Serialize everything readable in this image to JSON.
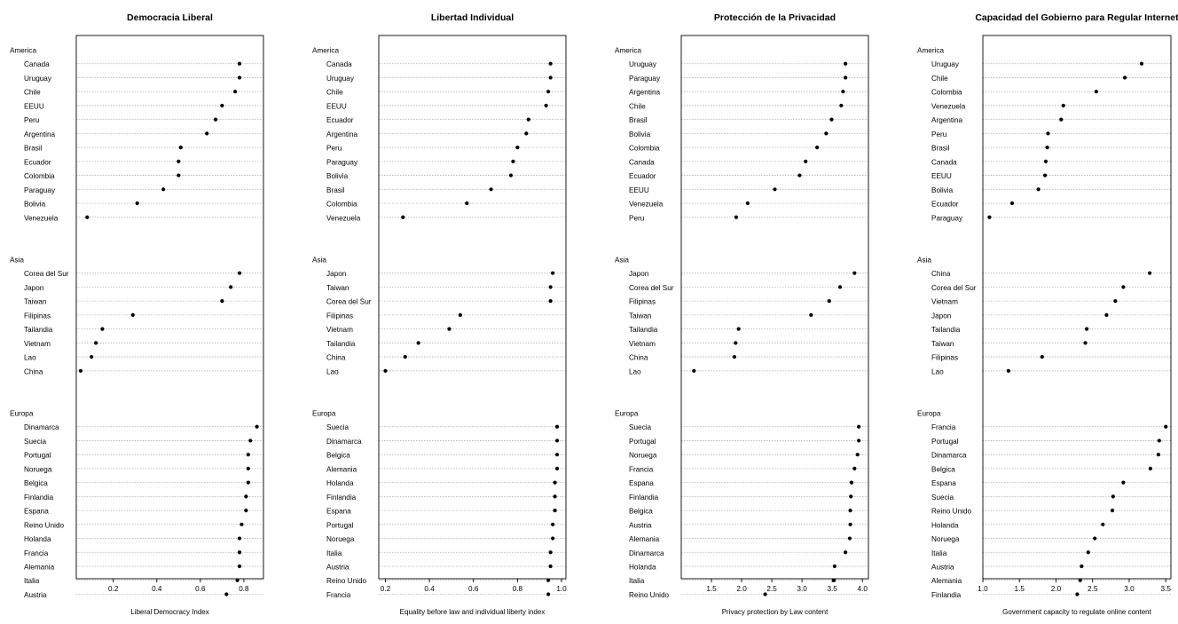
{
  "chart_data": [
    {
      "type": "scatter",
      "title": "Democracia Liberal",
      "xlabel": "Liberal Democracy Index",
      "xlim": [
        0.03,
        0.89
      ],
      "ticks": [
        0.2,
        0.4,
        0.6,
        0.8
      ],
      "tick_labels": [
        "0.2",
        "0.4",
        "0.6",
        "0.8"
      ],
      "grid": "horizontal dotted",
      "groups": [
        {
          "name": "America",
          "points": [
            {
              "label": "Canada",
              "value": 0.78
            },
            {
              "label": "Uruguay",
              "value": 0.78
            },
            {
              "label": "Chile",
              "value": 0.76
            },
            {
              "label": "EEUU",
              "value": 0.7
            },
            {
              "label": "Peru",
              "value": 0.67
            },
            {
              "label": "Argentina",
              "value": 0.63
            },
            {
              "label": "Brasil",
              "value": 0.51
            },
            {
              "label": "Ecuador",
              "value": 0.5
            },
            {
              "label": "Colombia",
              "value": 0.5
            },
            {
              "label": "Paraguay",
              "value": 0.43
            },
            {
              "label": "Bolivia",
              "value": 0.31
            },
            {
              "label": "Venezuela",
              "value": 0.08
            }
          ]
        },
        {
          "name": "Asia",
          "points": [
            {
              "label": "Corea del Sur",
              "value": 0.78
            },
            {
              "label": "Japon",
              "value": 0.74
            },
            {
              "label": "Taiwan",
              "value": 0.7
            },
            {
              "label": "Filipinas",
              "value": 0.29
            },
            {
              "label": "Tailandia",
              "value": 0.15
            },
            {
              "label": "Vietnam",
              "value": 0.12
            },
            {
              "label": "Lao",
              "value": 0.1
            },
            {
              "label": "China",
              "value": 0.05
            }
          ]
        },
        {
          "name": "Europa",
          "points": [
            {
              "label": "Dinamarca",
              "value": 0.86
            },
            {
              "label": "Suecia",
              "value": 0.83
            },
            {
              "label": "Portugal",
              "value": 0.82
            },
            {
              "label": "Noruega",
              "value": 0.82
            },
            {
              "label": "Belgica",
              "value": 0.82
            },
            {
              "label": "Finlandia",
              "value": 0.81
            },
            {
              "label": "Espana",
              "value": 0.81
            },
            {
              "label": "Reino Unido",
              "value": 0.79
            },
            {
              "label": "Holanda",
              "value": 0.78
            },
            {
              "label": "Francia",
              "value": 0.78
            },
            {
              "label": "Alemania",
              "value": 0.78
            },
            {
              "label": "Italia",
              "value": 0.77
            },
            {
              "label": "Austria",
              "value": 0.72
            }
          ]
        }
      ]
    },
    {
      "type": "scatter",
      "title": "Libertad Individual",
      "xlabel": "Equality before law and individual liberty index",
      "xlim": [
        0.17,
        1.02
      ],
      "ticks": [
        0.2,
        0.4,
        0.6,
        0.8,
        1.0
      ],
      "tick_labels": [
        "0.2",
        "0.4",
        "0.6",
        "0.8",
        "1.0"
      ],
      "grid": "horizontal dotted",
      "groups": [
        {
          "name": "America",
          "points": [
            {
              "label": "Canada",
              "value": 0.95
            },
            {
              "label": "Uruguay",
              "value": 0.95
            },
            {
              "label": "Chile",
              "value": 0.94
            },
            {
              "label": "EEUU",
              "value": 0.93
            },
            {
              "label": "Ecuador",
              "value": 0.85
            },
            {
              "label": "Argentina",
              "value": 0.84
            },
            {
              "label": "Peru",
              "value": 0.8
            },
            {
              "label": "Paraguay",
              "value": 0.78
            },
            {
              "label": "Bolivia",
              "value": 0.77
            },
            {
              "label": "Brasil",
              "value": 0.68
            },
            {
              "label": "Colombia",
              "value": 0.57
            },
            {
              "label": "Venezuela",
              "value": 0.28
            }
          ]
        },
        {
          "name": "Asia",
          "points": [
            {
              "label": "Japon",
              "value": 0.96
            },
            {
              "label": "Taiwan",
              "value": 0.95
            },
            {
              "label": "Corea del Sur",
              "value": 0.95
            },
            {
              "label": "Filipinas",
              "value": 0.54
            },
            {
              "label": "Vietnam",
              "value": 0.49
            },
            {
              "label": "Tailandia",
              "value": 0.35
            },
            {
              "label": "China",
              "value": 0.29
            },
            {
              "label": "Lao",
              "value": 0.2
            }
          ]
        },
        {
          "name": "Europa",
          "points": [
            {
              "label": "Suecia",
              "value": 0.98
            },
            {
              "label": "Dinamarca",
              "value": 0.98
            },
            {
              "label": "Belgica",
              "value": 0.98
            },
            {
              "label": "Alemania",
              "value": 0.98
            },
            {
              "label": "Holanda",
              "value": 0.97
            },
            {
              "label": "Finlandia",
              "value": 0.97
            },
            {
              "label": "Espana",
              "value": 0.97
            },
            {
              "label": "Portugal",
              "value": 0.96
            },
            {
              "label": "Noruega",
              "value": 0.96
            },
            {
              "label": "Italia",
              "value": 0.95
            },
            {
              "label": "Austria",
              "value": 0.95
            },
            {
              "label": "Reino Unido",
              "value": 0.94
            },
            {
              "label": "Francia",
              "value": 0.94
            }
          ]
        }
      ]
    },
    {
      "type": "scatter",
      "title": "Protección de la Privacidad",
      "xlabel": "Privacy protection by Law content",
      "xlim": [
        1.0,
        4.1
      ],
      "ticks": [
        1.5,
        2.0,
        2.5,
        3.0,
        3.5,
        4.0
      ],
      "tick_labels": [
        "1.5",
        "2.0",
        "2.5",
        "3.0",
        "3.5",
        "4.0"
      ],
      "grid": "horizontal dotted",
      "groups": [
        {
          "name": "America",
          "points": [
            {
              "label": "Uruguay",
              "value": 3.72
            },
            {
              "label": "Paraguay",
              "value": 3.72
            },
            {
              "label": "Argentina",
              "value": 3.68
            },
            {
              "label": "Chile",
              "value": 3.65
            },
            {
              "label": "Brasil",
              "value": 3.49
            },
            {
              "label": "Bolivia",
              "value": 3.4
            },
            {
              "label": "Colombia",
              "value": 3.25
            },
            {
              "label": "Canada",
              "value": 3.06
            },
            {
              "label": "Ecuador",
              "value": 2.96
            },
            {
              "label": "EEUU",
              "value": 2.55
            },
            {
              "label": "Venezuela",
              "value": 2.1
            },
            {
              "label": "Peru",
              "value": 1.91
            }
          ]
        },
        {
          "name": "Asia",
          "points": [
            {
              "label": "Japon",
              "value": 3.87
            },
            {
              "label": "Corea del Sur",
              "value": 3.63
            },
            {
              "label": "Filipinas",
              "value": 3.45
            },
            {
              "label": "Taiwan",
              "value": 3.15
            },
            {
              "label": "Tailandia",
              "value": 1.95
            },
            {
              "label": "Vietnam",
              "value": 1.9
            },
            {
              "label": "China",
              "value": 1.88
            },
            {
              "label": "Lao",
              "value": 1.21
            }
          ]
        },
        {
          "name": "Europa",
          "points": [
            {
              "label": "Suecia",
              "value": 3.94
            },
            {
              "label": "Portugal",
              "value": 3.94
            },
            {
              "label": "Noruega",
              "value": 3.92
            },
            {
              "label": "Francia",
              "value": 3.87
            },
            {
              "label": "Espana",
              "value": 3.82
            },
            {
              "label": "Finlandia",
              "value": 3.81
            },
            {
              "label": "Belgica",
              "value": 3.8
            },
            {
              "label": "Austria",
              "value": 3.8
            },
            {
              "label": "Alemania",
              "value": 3.79
            },
            {
              "label": "Dinamarca",
              "value": 3.72
            },
            {
              "label": "Holanda",
              "value": 3.54
            },
            {
              "label": "Italia",
              "value": 3.53
            },
            {
              "label": "Reino Unido",
              "value": 2.39
            }
          ]
        }
      ]
    },
    {
      "type": "scatter",
      "title": "Capacidad del Gobierno para Regular Internet",
      "xlabel": "Government capacity to regulate online content",
      "xlim": [
        1.0,
        3.57
      ],
      "ticks": [
        1.0,
        1.5,
        2.0,
        2.5,
        3.0,
        3.5
      ],
      "tick_labels": [
        "1.0",
        "1.5",
        "2.0",
        "2.5",
        "3.0",
        "3.5"
      ],
      "grid": "horizontal dotted",
      "groups": [
        {
          "name": "America",
          "points": [
            {
              "label": "Uruguay",
              "value": 3.17
            },
            {
              "label": "Chile",
              "value": 2.94
            },
            {
              "label": "Colombia",
              "value": 2.55
            },
            {
              "label": "Venezuela",
              "value": 2.1
            },
            {
              "label": "Argentina",
              "value": 2.07
            },
            {
              "label": "Peru",
              "value": 1.89
            },
            {
              "label": "Brasil",
              "value": 1.88
            },
            {
              "label": "Canada",
              "value": 1.86
            },
            {
              "label": "EEUU",
              "value": 1.85
            },
            {
              "label": "Bolivia",
              "value": 1.76
            },
            {
              "label": "Ecuador",
              "value": 1.4
            },
            {
              "label": "Paraguay",
              "value": 1.09
            }
          ]
        },
        {
          "name": "Asia",
          "points": [
            {
              "label": "China",
              "value": 3.28
            },
            {
              "label": "Corea del Sur",
              "value": 2.92
            },
            {
              "label": "Vietnam",
              "value": 2.81
            },
            {
              "label": "Japon",
              "value": 2.69
            },
            {
              "label": "Tailandia",
              "value": 2.42
            },
            {
              "label": "Taiwan",
              "value": 2.4
            },
            {
              "label": "Filipinas",
              "value": 1.81
            },
            {
              "label": "Lao",
              "value": 1.35
            }
          ]
        },
        {
          "name": "Europa",
          "points": [
            {
              "label": "Francia",
              "value": 3.5
            },
            {
              "label": "Portugal",
              "value": 3.41
            },
            {
              "label": "Dinamarca",
              "value": 3.4
            },
            {
              "label": "Belgica",
              "value": 3.29
            },
            {
              "label": "Espana",
              "value": 2.92
            },
            {
              "label": "Suecia",
              "value": 2.78
            },
            {
              "label": "Reino Unido",
              "value": 2.77
            },
            {
              "label": "Holanda",
              "value": 2.64
            },
            {
              "label": "Noruega",
              "value": 2.53
            },
            {
              "label": "Italia",
              "value": 2.44
            },
            {
              "label": "Austria",
              "value": 2.35
            },
            {
              "label": "Alemania",
              "value": 2.33
            },
            {
              "label": "Finlandia",
              "value": 2.29
            }
          ]
        }
      ]
    }
  ]
}
